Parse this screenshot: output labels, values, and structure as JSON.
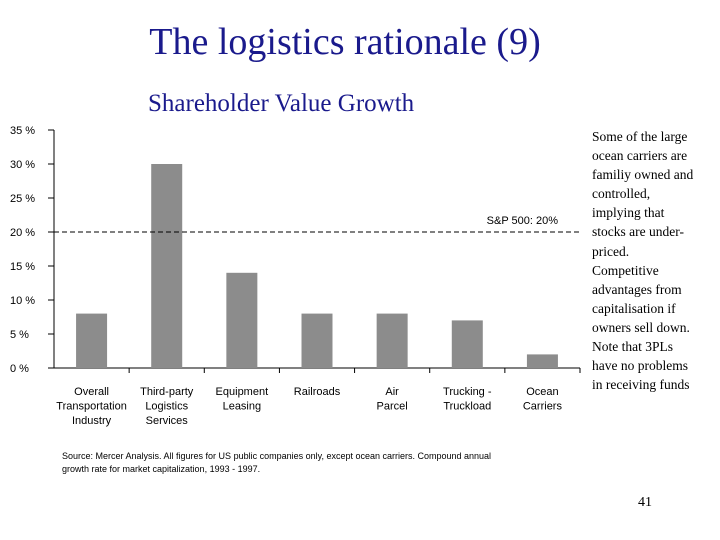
{
  "slide": {
    "title": "The logistics rationale (9)",
    "subtitle": "Shareholder Value Growth",
    "page_number": "41"
  },
  "note": {
    "lines": [
      "Some of the large",
      "ocean carriers are",
      "familiy owned and",
      "controlled,",
      "implying that",
      "stocks are under-",
      "priced.",
      "Competitive",
      "advantages from",
      "capitalisation if",
      "owners sell down.",
      "Note that 3PLs",
      "have no problems",
      "in receiving funds"
    ]
  },
  "source": {
    "lines": [
      "Source: Mercer Analysis.  All figures for US public companies only, except ocean carriers. Compound annual",
      "growth rate for market capitalization, 1993 - 1997."
    ]
  },
  "chart_data": {
    "type": "bar",
    "title": "Shareholder Value Growth",
    "xlabel": "",
    "ylabel": "",
    "categories": [
      [
        "Overall",
        "Transportation",
        "Industry"
      ],
      [
        "Third-party",
        "Logistics",
        "Services"
      ],
      [
        "Equipment",
        "Leasing"
      ],
      [
        "Railroads"
      ],
      [
        "Air",
        "Parcel"
      ],
      [
        "Trucking -",
        "Truckload"
      ],
      [
        "Ocean",
        "Carriers"
      ]
    ],
    "values": [
      8,
      30,
      14,
      8,
      8,
      7,
      2
    ],
    "y_tick_labels": [
      "0 %",
      "5 %",
      "10 %",
      "15 %",
      "20 %",
      "25 %",
      "30 %",
      "35 %"
    ],
    "ylim": [
      0,
      35
    ],
    "y_step": 5,
    "reference_line": {
      "value": 20,
      "label": "S&P 500: 20%"
    },
    "bar_color": "#8c8c8c",
    "grid": false
  }
}
